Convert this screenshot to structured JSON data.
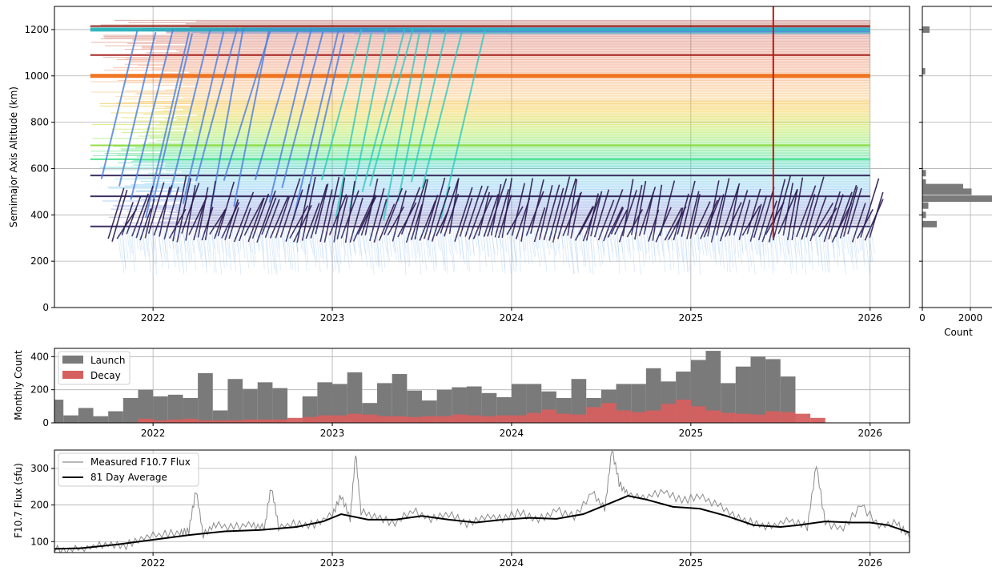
{
  "chart_data": [
    {
      "id": "altitude",
      "type": "line",
      "ylabel": "Semimajor Axis Altitude (km)",
      "xlabel": "",
      "x_ticks": [
        "2022",
        "2023",
        "2024",
        "2025",
        "2026"
      ],
      "y_ticks": [
        0,
        200,
        400,
        600,
        800,
        1000,
        1200
      ],
      "xlim": [
        2021.45,
        2026.22
      ],
      "ylim": [
        0,
        1300
      ],
      "grid": true,
      "bands": [
        {
          "altitude_km": 1200,
          "color": "#1eb0b8"
        },
        {
          "altitude_km": 1000,
          "color": "#f06a10"
        },
        {
          "altitude_km": 1090,
          "color": "#a01010"
        },
        {
          "altitude_km": 1215,
          "color": "#8b0a00"
        },
        {
          "altitude_km": 700,
          "color": "#8ad832"
        },
        {
          "altitude_km": 640,
          "color": "#3ae086"
        },
        {
          "altitude_km": 570,
          "color": "#2a1850"
        },
        {
          "altitude_km": 480,
          "color": "#2a1850"
        },
        {
          "altitude_km": 350,
          "color": "#2a1850"
        }
      ],
      "vertical_marker": {
        "x": 2025.46,
        "color": "#b81c10"
      }
    },
    {
      "id": "altitude-histogram",
      "type": "bar",
      "orientation": "horizontal",
      "xlabel": "Count",
      "x_ticks": [
        0,
        2000
      ],
      "xlim": [
        0,
        3000
      ],
      "bins_km": [
        1200,
        1020,
        580,
        540,
        520,
        500,
        470,
        440,
        400,
        360
      ],
      "counts": [
        300,
        120,
        150,
        150,
        1700,
        2050,
        2900,
        250,
        150,
        600
      ],
      "color": "#7a7a7a"
    },
    {
      "id": "monthly-count",
      "type": "bar",
      "ylabel": "Monthly Count",
      "x_ticks": [
        "2022",
        "2023",
        "2024",
        "2025",
        "2026"
      ],
      "y_ticks": [
        0,
        200,
        400
      ],
      "ylim": [
        0,
        450
      ],
      "legend_position": "top-left",
      "series": [
        {
          "name": "Launch",
          "color": "#7a7a7a",
          "start": [
            2021,
            6
          ],
          "values": [
            140,
            45,
            90,
            40,
            70,
            150,
            200,
            160,
            170,
            150,
            300,
            75,
            265,
            205,
            245,
            210,
            0,
            160,
            245,
            235,
            305,
            120,
            240,
            295,
            195,
            135,
            200,
            215,
            220,
            180,
            155,
            235,
            235,
            190,
            150,
            265,
            150,
            200,
            235,
            235,
            330,
            250,
            310,
            380,
            435,
            240,
            340,
            400,
            385,
            280,
            0
          ]
        },
        {
          "name": "Decay",
          "color": "#d65f5f",
          "start": [
            2021,
            6
          ],
          "values": [
            0,
            0,
            0,
            0,
            0,
            0,
            25,
            15,
            20,
            25,
            15,
            15,
            15,
            20,
            20,
            20,
            30,
            35,
            45,
            45,
            55,
            50,
            40,
            40,
            35,
            40,
            40,
            50,
            45,
            40,
            45,
            45,
            60,
            80,
            55,
            50,
            95,
            120,
            75,
            65,
            75,
            115,
            140,
            100,
            75,
            60,
            55,
            50,
            70,
            65,
            55,
            30
          ]
        }
      ]
    },
    {
      "id": "f107",
      "type": "line",
      "ylabel": "F10.7 Flux (sfu)",
      "x_ticks": [
        "2022",
        "2023",
        "2024",
        "2025",
        "2026"
      ],
      "y_ticks": [
        100,
        200,
        300
      ],
      "ylim": [
        70,
        350
      ],
      "legend_position": "top-left",
      "series": [
        {
          "name": "Measured F10.7 Flux",
          "color": "#8c8c8c",
          "x": [
            2021.45,
            2021.55,
            2021.65,
            2021.75,
            2021.85,
            2021.95,
            2022.05,
            2022.15,
            2022.2,
            2022.24,
            2022.28,
            2022.35,
            2022.45,
            2022.55,
            2022.62,
            2022.66,
            2022.7,
            2022.8,
            2022.9,
            2023.0,
            2023.05,
            2023.1,
            2023.13,
            2023.16,
            2023.25,
            2023.35,
            2023.45,
            2023.55,
            2023.65,
            2023.75,
            2023.85,
            2023.95,
            2024.05,
            2024.15,
            2024.25,
            2024.35,
            2024.45,
            2024.52,
            2024.56,
            2024.6,
            2024.65,
            2024.75,
            2024.85,
            2024.95,
            2025.05,
            2025.15,
            2025.25,
            2025.35,
            2025.45,
            2025.55,
            2025.65,
            2025.7,
            2025.75,
            2025.85,
            2025.95,
            2026.05,
            2026.15,
            2026.22
          ],
          "y": [
            80,
            78,
            85,
            95,
            90,
            110,
            120,
            125,
            130,
            240,
            120,
            145,
            140,
            150,
            135,
            250,
            140,
            150,
            145,
            175,
            225,
            160,
            340,
            180,
            165,
            150,
            185,
            160,
            175,
            150,
            170,
            165,
            180,
            160,
            185,
            170,
            235,
            190,
            355,
            260,
            230,
            220,
            240,
            210,
            225,
            200,
            170,
            150,
            140,
            160,
            140,
            310,
            150,
            135,
            200,
            145,
            150,
            110
          ]
        },
        {
          "name": "81 Day Average",
          "color": "#000000",
          "x": [
            2021.45,
            2021.6,
            2021.8,
            2022.0,
            2022.2,
            2022.4,
            2022.6,
            2022.8,
            2022.95,
            2023.05,
            2023.2,
            2023.35,
            2023.5,
            2023.65,
            2023.8,
            2023.95,
            2024.1,
            2024.25,
            2024.4,
            2024.55,
            2024.65,
            2024.75,
            2024.9,
            2025.05,
            2025.2,
            2025.35,
            2025.5,
            2025.6,
            2025.75,
            2025.9,
            2026.0,
            2026.1,
            2026.22
          ],
          "y": [
            80,
            82,
            92,
            105,
            118,
            128,
            132,
            140,
            155,
            175,
            160,
            160,
            170,
            160,
            152,
            160,
            165,
            162,
            175,
            205,
            225,
            215,
            195,
            190,
            170,
            145,
            140,
            145,
            155,
            152,
            152,
            145,
            125
          ]
        }
      ]
    }
  ]
}
